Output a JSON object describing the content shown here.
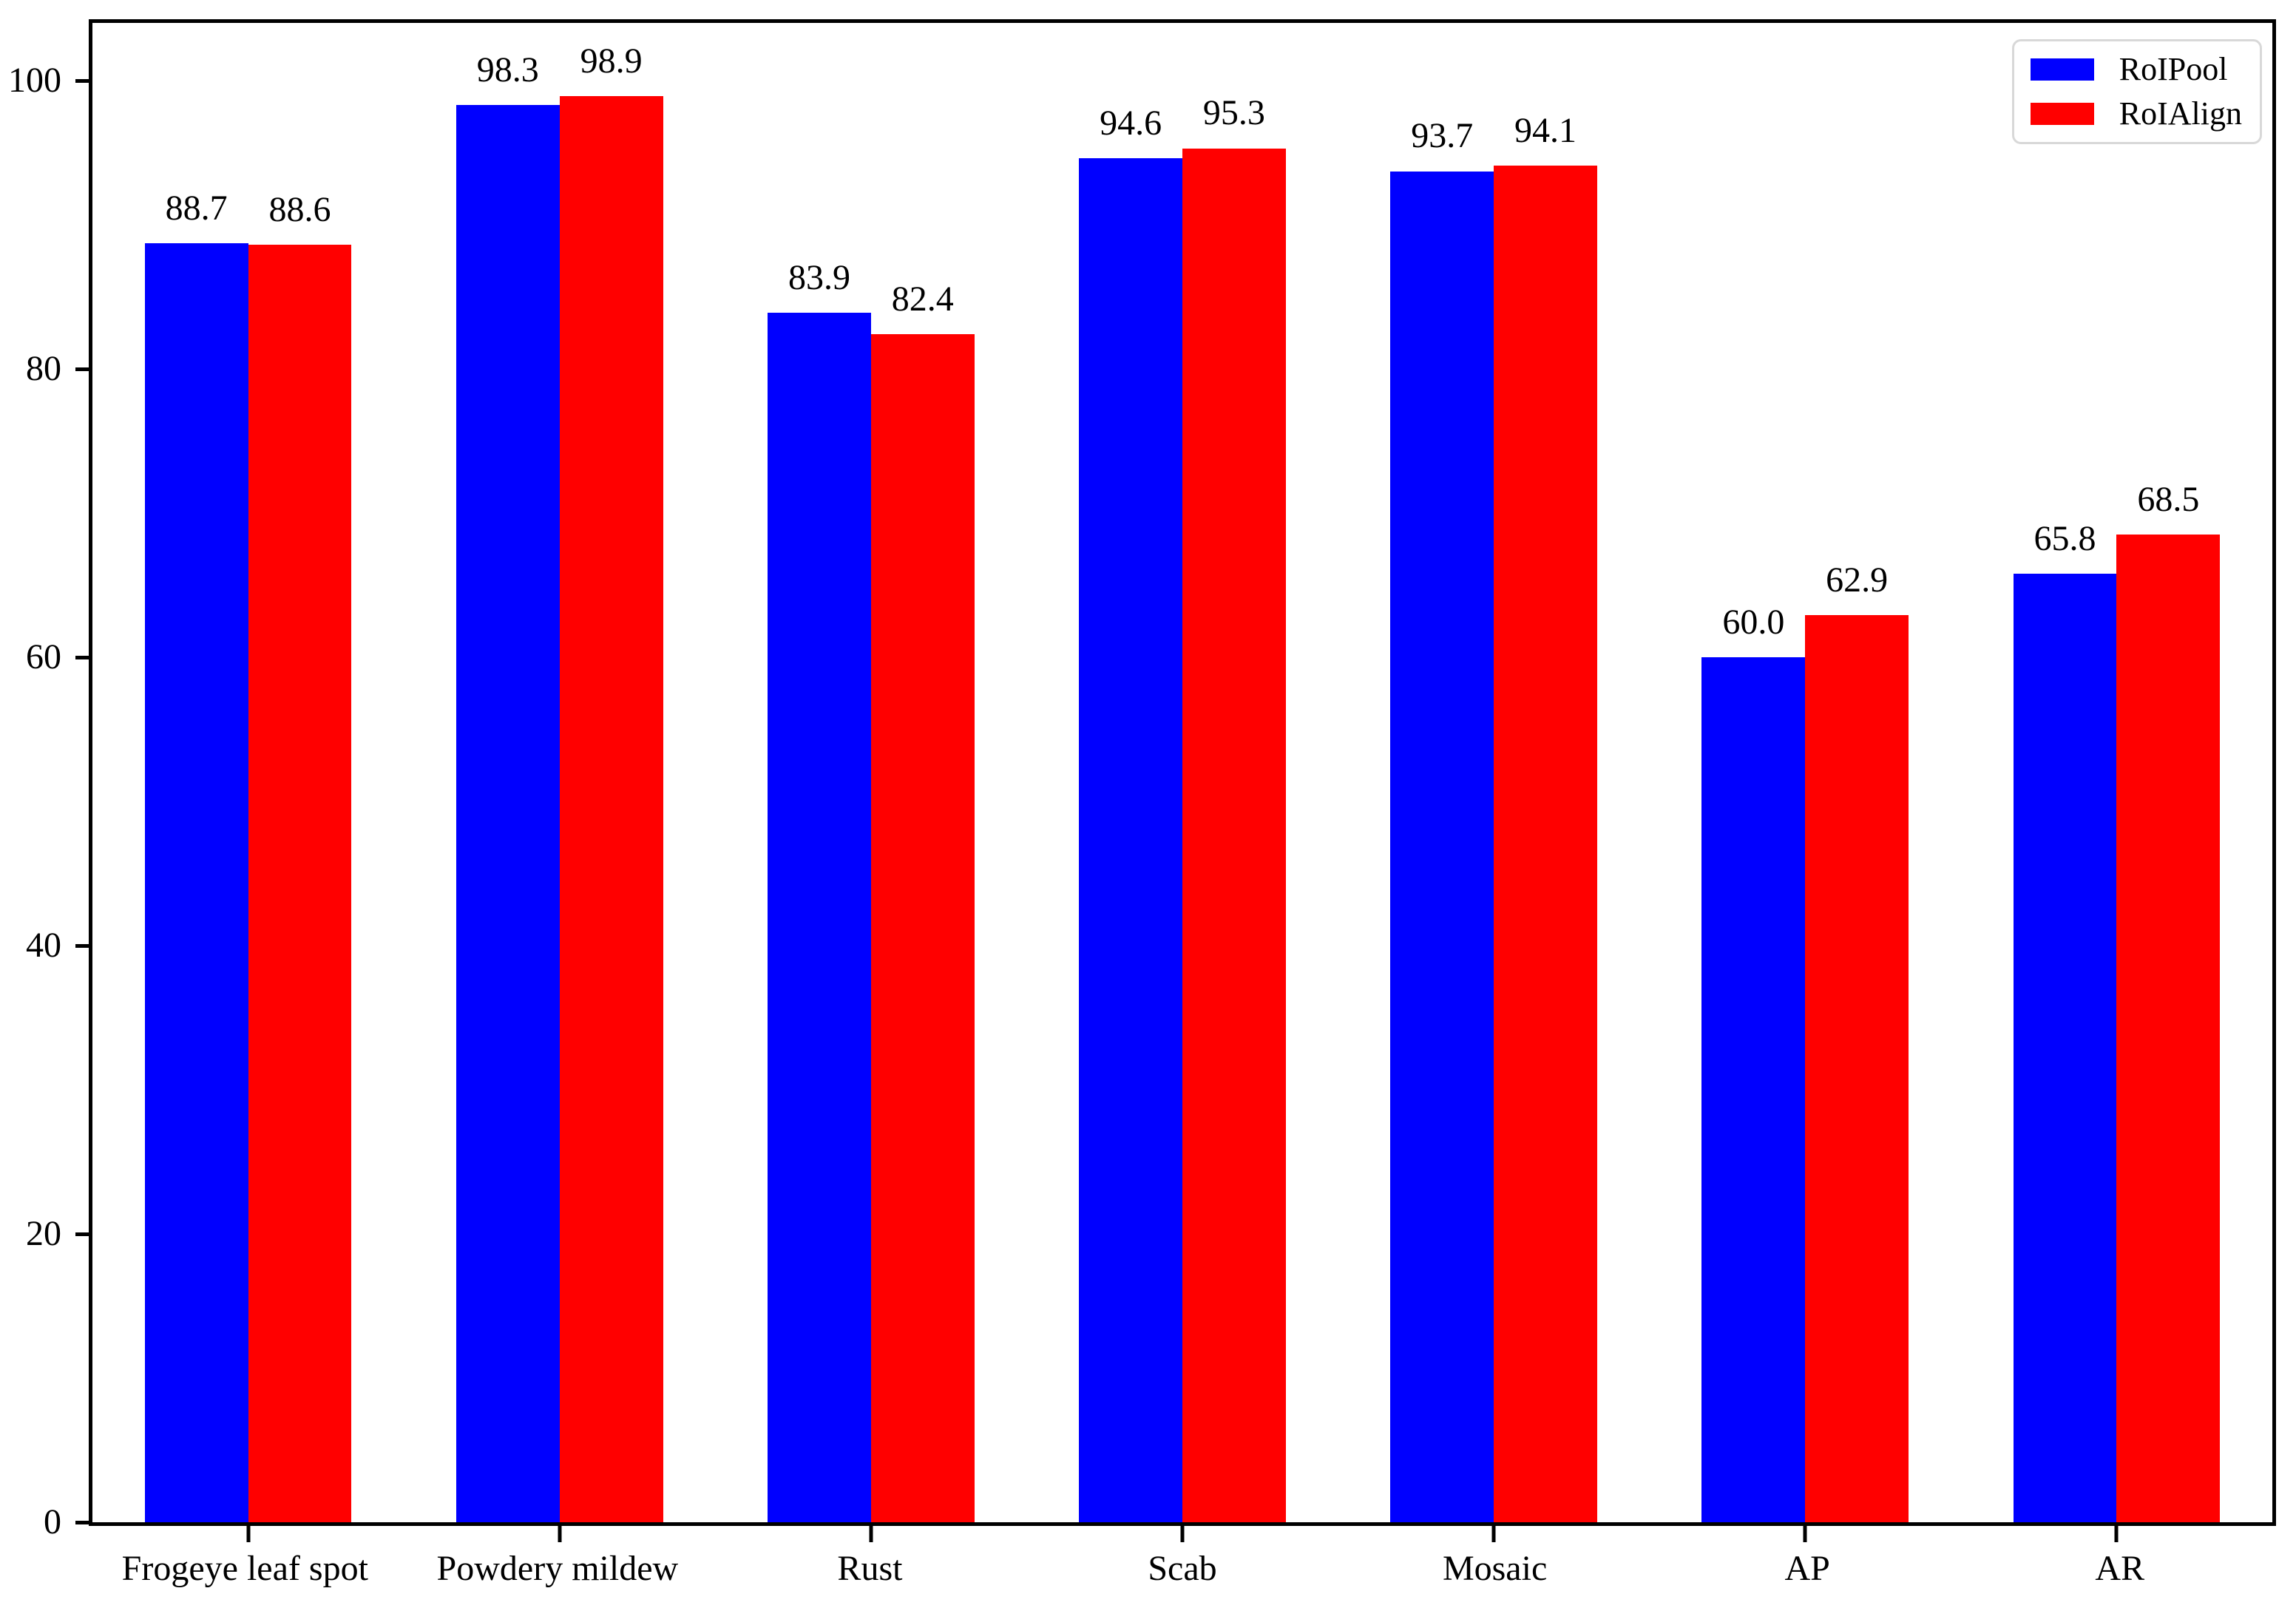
{
  "chart_data": {
    "type": "bar",
    "title": "",
    "xlabel": "",
    "ylabel": "",
    "categories": [
      "Frogeye leaf spot",
      "Powdery mildew",
      "Rust",
      "Scab",
      "Mosaic",
      "AP",
      "AR"
    ],
    "series": [
      {
        "name": "RoIPool",
        "color": "#0000ff",
        "values": [
          88.7,
          98.3,
          83.9,
          94.6,
          93.7,
          60.0,
          65.8
        ],
        "labels": [
          "88.7",
          "98.3",
          "83.9",
          "94.6",
          "93.7",
          "60.0",
          "65.8"
        ]
      },
      {
        "name": "RoIAlign",
        "color": "#ff0000",
        "values": [
          88.6,
          98.9,
          82.4,
          95.3,
          94.1,
          62.9,
          68.5
        ],
        "labels": [
          "88.6",
          "98.9",
          "82.4",
          "95.3",
          "94.1",
          "62.9",
          "68.5"
        ]
      }
    ],
    "ylim": [
      0,
      104
    ],
    "yticks": {
      "values": [
        0,
        20,
        40,
        60,
        80,
        100
      ],
      "labels": [
        "0",
        "20",
        "40",
        "60",
        "80",
        "100"
      ]
    },
    "legend": {
      "position": "top-right",
      "entries": [
        "RoIPool",
        "RoIAlign"
      ]
    },
    "grid": false
  },
  "colors": {
    "axis": "#000000",
    "background": "#ffffff",
    "legend_border": "#d8d8d8",
    "label_text": "#000000"
  }
}
